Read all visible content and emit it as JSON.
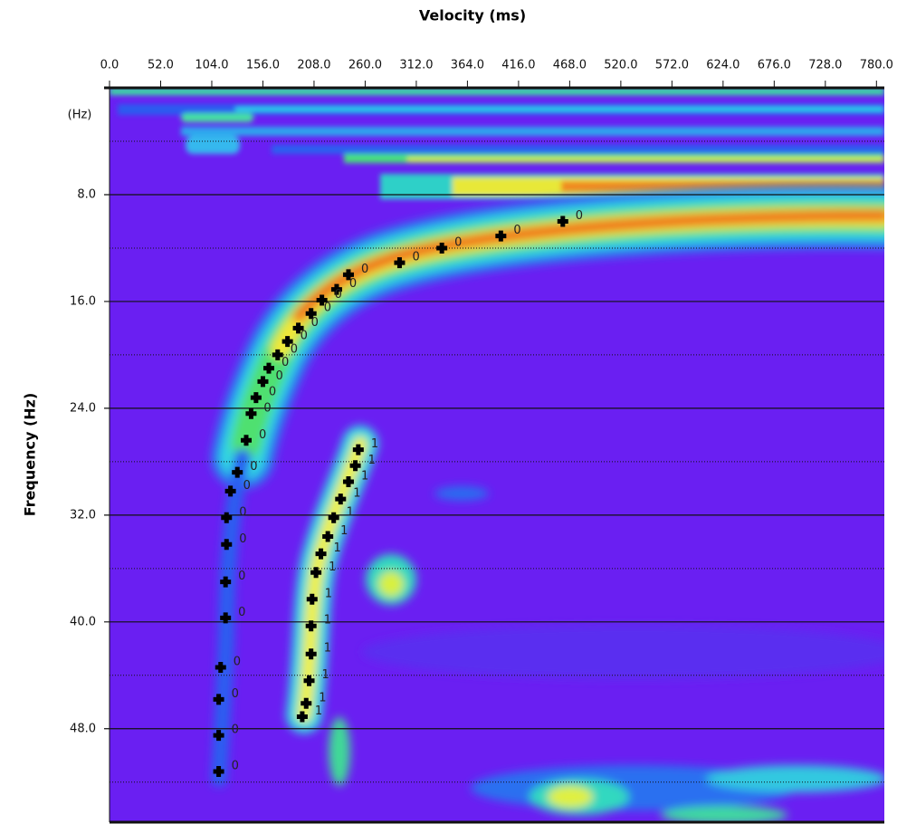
{
  "chart_data": {
    "type": "scatter",
    "title": "Velocity (ms)",
    "y_label": "Frequency (Hz)",
    "y_unit_label": "(Hz)",
    "xlim": [
      0,
      788
    ],
    "ylim": [
      0,
      55
    ],
    "xticks": [
      {
        "value": 0,
        "label": "0.0"
      },
      {
        "value": 52,
        "label": "52.0"
      },
      {
        "value": 104,
        "label": "104.0"
      },
      {
        "value": 156,
        "label": "156.0"
      },
      {
        "value": 208,
        "label": "208.0"
      },
      {
        "value": 260,
        "label": "260.0"
      },
      {
        "value": 312,
        "label": "312.0"
      },
      {
        "value": 364,
        "label": "364.0"
      },
      {
        "value": 416,
        "label": "416.0"
      },
      {
        "value": 468,
        "label": "468.0"
      },
      {
        "value": 520,
        "label": "520.0"
      },
      {
        "value": 572,
        "label": "572.0"
      },
      {
        "value": 624,
        "label": "624.0"
      },
      {
        "value": 676,
        "label": "676.0"
      },
      {
        "value": 728,
        "label": "728.0"
      },
      {
        "value": 780,
        "label": "780.0"
      }
    ],
    "yticks": [
      {
        "value": 8,
        "label": "8.0"
      },
      {
        "value": 16,
        "label": "16.0"
      },
      {
        "value": 24,
        "label": "24.0"
      },
      {
        "value": 32,
        "label": "32.0"
      },
      {
        "value": 40,
        "label": "40.0"
      },
      {
        "value": 48,
        "label": "48.0"
      }
    ],
    "yminor": [
      4,
      12,
      20,
      28,
      36,
      44,
      52
    ],
    "grid": true,
    "series": [
      {
        "name": "0",
        "color": "#000000",
        "x": [
          461,
          398,
          338,
          295,
          243,
          231,
          216,
          205,
          192,
          181,
          171,
          162,
          156,
          149,
          144,
          139,
          130,
          123,
          119,
          119,
          118,
          118,
          113,
          111,
          111,
          111
        ],
        "values": [
          10.0,
          11.1,
          12.0,
          13.1,
          14.0,
          15.1,
          15.9,
          16.9,
          18.0,
          19.0,
          20.0,
          21.0,
          22.0,
          23.2,
          24.4,
          26.4,
          28.8,
          30.2,
          32.2,
          34.2,
          37.0,
          39.7,
          43.4,
          45.8,
          48.5,
          51.2
        ]
      },
      {
        "name": "1",
        "color": "#000000",
        "x": [
          253,
          250,
          243,
          235,
          228,
          222,
          215,
          210,
          206,
          205,
          205,
          203,
          200,
          196
        ],
        "values": [
          27.1,
          28.3,
          29.5,
          30.8,
          32.2,
          33.6,
          34.9,
          36.3,
          38.3,
          40.3,
          42.4,
          44.4,
          46.1,
          47.1
        ]
      }
    ]
  }
}
